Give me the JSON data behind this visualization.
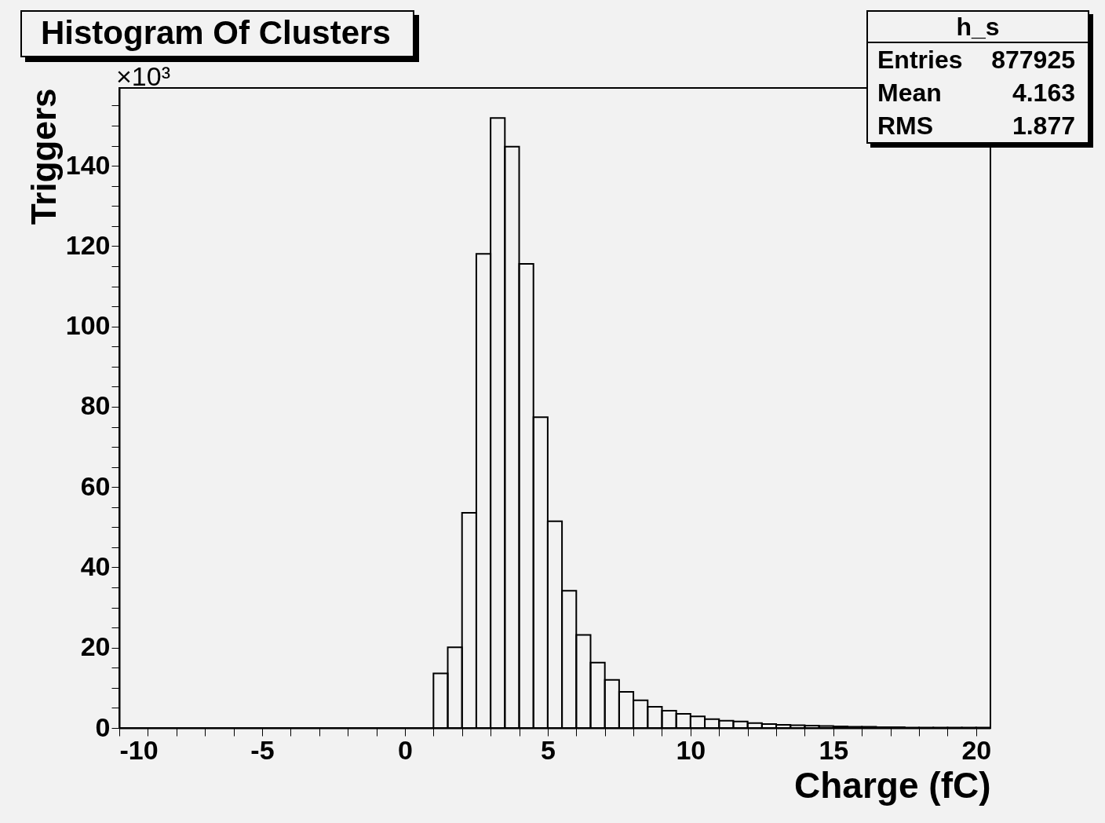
{
  "chart_data": {
    "type": "histogram",
    "title": "Histogram Of Clusters",
    "xlabel": "Charge (fC)",
    "ylabel": "Triggers",
    "bins": [
      -10,
      -9.5,
      -9,
      -8.5,
      -8,
      -7.5,
      -7,
      -6.5,
      -6,
      -5.5,
      -5,
      -4.5,
      -4,
      -3.5,
      -3,
      -2.5,
      -2,
      -1.5,
      -1,
      -0.5,
      0,
      0.5,
      1,
      1.5,
      2,
      2.5,
      3,
      3.5,
      4,
      4.5,
      5,
      5.5,
      6,
      6.5,
      7,
      7.5,
      8,
      8.5,
      9,
      9.5,
      10,
      10.5,
      11,
      11.5,
      12,
      12.5,
      13,
      13.5,
      14,
      14.5,
      15,
      15.5,
      16,
      16.5,
      17,
      17.5,
      18,
      18.5,
      19,
      19.5,
      20,
      20.5
    ],
    "values": [
      0,
      0,
      0,
      0,
      0,
      0,
      0,
      0,
      0,
      0,
      0,
      0,
      0,
      0,
      0,
      0,
      0,
      0,
      0,
      0,
      0,
      0,
      13.6,
      20.1,
      53.6,
      118.1,
      151.9,
      144.8,
      115.6,
      77.4,
      51.5,
      34.2,
      23.2,
      16.3,
      12.0,
      9.0,
      6.9,
      5.3,
      4.3,
      3.5,
      2.9,
      2.2,
      1.8,
      1.6,
      1.2,
      1.0,
      0.8,
      0.7,
      0.6,
      0.5,
      0.4,
      0.3,
      0.3,
      0.2,
      0.2,
      0.1,
      0.1,
      0.1,
      0.1,
      0.1,
      0.1
    ],
    "color": "#000000",
    "xlim": [
      -10,
      20.5
    ],
    "xticks": [
      -10,
      {
        "value": -9,
        "label": null
      },
      {
        "value": -8,
        "label": null
      },
      {
        "value": -7,
        "label": null
      },
      {
        "value": -6,
        "label": null
      },
      -5,
      {
        "value": -4,
        "label": null
      },
      {
        "value": -3,
        "label": null
      },
      {
        "value": -2,
        "label": null
      },
      {
        "value": -1,
        "label": null
      },
      0,
      {
        "value": 1,
        "label": null
      },
      {
        "value": 2,
        "label": null
      },
      {
        "value": 3,
        "label": null
      },
      {
        "value": 4,
        "label": null
      },
      5,
      {
        "value": 6,
        "label": null
      },
      {
        "value": 7,
        "label": null
      },
      {
        "value": 8,
        "label": null
      },
      {
        "value": 9,
        "label": null
      },
      10,
      {
        "value": 11,
        "label": null
      },
      {
        "value": 12,
        "label": null
      },
      {
        "value": 13,
        "label": null
      },
      {
        "value": 14,
        "label": null
      },
      15,
      {
        "value": 16,
        "label": null
      },
      {
        "value": 17,
        "label": null
      },
      {
        "value": 18,
        "label": null
      },
      {
        "value": 19,
        "label": null
      },
      20
    ],
    "ylim": [
      0,
      159.4
    ],
    "yticks": [
      0,
      {
        "value": 5,
        "label": null
      },
      {
        "value": 10,
        "label": null
      },
      {
        "value": 15,
        "label": null
      },
      20,
      {
        "value": 25,
        "label": null
      },
      {
        "value": 30,
        "label": null
      },
      {
        "value": 35,
        "label": null
      },
      40,
      {
        "value": 45,
        "label": null
      },
      {
        "value": 50,
        "label": null
      },
      {
        "value": 55,
        "label": null
      },
      60,
      {
        "value": 65,
        "label": null
      },
      {
        "value": 70,
        "label": null
      },
      {
        "value": 75,
        "label": null
      },
      80,
      {
        "value": 85,
        "label": null
      },
      {
        "value": 90,
        "label": null
      },
      {
        "value": 95,
        "label": null
      },
      100,
      {
        "value": 105,
        "label": null
      },
      {
        "value": 110,
        "label": null
      },
      {
        "value": 115,
        "label": null
      },
      120,
      {
        "value": 125,
        "label": null
      },
      {
        "value": 130,
        "label": null
      },
      {
        "value": 135,
        "label": null
      },
      140,
      {
        "value": 145,
        "label": null
      },
      {
        "value": 150,
        "label": null
      },
      {
        "value": 155,
        "label": null
      }
    ],
    "annotations": [
      "×10³",
      "h_s",
      "Entries 877925",
      "Mean 4.163",
      "RMS 1.877"
    ],
    "grid": false
  }
}
